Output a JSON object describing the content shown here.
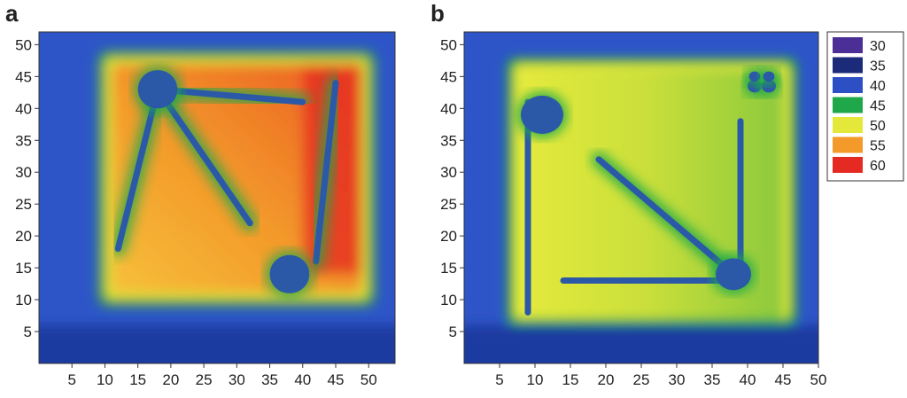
{
  "chart_data": [
    {
      "type": "heatmap",
      "panel": "a",
      "title": "",
      "xlabel": "",
      "ylabel": "",
      "xlim": [
        0,
        54
      ],
      "ylim": [
        0,
        52
      ],
      "x_ticks": [
        5,
        10,
        15,
        20,
        25,
        30,
        35,
        40,
        45,
        50
      ],
      "y_ticks": [
        5,
        10,
        15,
        20,
        25,
        30,
        35,
        40,
        45,
        50
      ],
      "frame": {
        "x0": 9,
        "y0": 9,
        "x1": 51,
        "y1": 49,
        "value": 45
      },
      "interior": {
        "x0": 11,
        "y0": 11,
        "x1": 49,
        "y1": 47,
        "value_left": 52,
        "value_right": 58
      },
      "hot_region": {
        "x0": 40,
        "y0": 14,
        "x1": 49,
        "y1": 47,
        "value": 60
      },
      "channels": [
        {
          "x1": 18,
          "y1": 43,
          "x2": 40,
          "y2": 41,
          "value": 42
        },
        {
          "x1": 18,
          "y1": 43,
          "x2": 32,
          "y2": 22,
          "value": 42
        },
        {
          "x1": 18,
          "y1": 43,
          "x2": 12,
          "y2": 18,
          "value": 42
        },
        {
          "x1": 45,
          "y1": 44,
          "x2": 42,
          "y2": 16,
          "value": 45
        }
      ],
      "blobs": [
        {
          "x": 18,
          "y": 43,
          "r": 3,
          "value": 38
        },
        {
          "x": 38,
          "y": 14,
          "r": 3,
          "value": 38
        }
      ],
      "background_value": 38
    },
    {
      "type": "heatmap",
      "panel": "b",
      "title": "",
      "xlabel": "",
      "ylabel": "",
      "xlim": [
        0,
        50
      ],
      "ylim": [
        0,
        52
      ],
      "x_ticks": [
        5,
        10,
        15,
        20,
        25,
        30,
        35,
        40,
        45,
        50
      ],
      "y_ticks": [
        5,
        10,
        15,
        20,
        25,
        30,
        35,
        40,
        45,
        50
      ],
      "frame": {
        "x0": 6,
        "y0": 6,
        "x1": 47,
        "y1": 48,
        "value": 45
      },
      "interior": {
        "x0": 7,
        "y0": 7,
        "x1": 45,
        "y1": 46,
        "value_left": 50,
        "value_right": 47
      },
      "channels": [
        {
          "x1": 9,
          "y1": 41,
          "x2": 9,
          "y2": 8,
          "value": 38
        },
        {
          "x1": 19,
          "y1": 32,
          "x2": 38,
          "y2": 14,
          "value": 38
        },
        {
          "x1": 14,
          "y1": 13,
          "x2": 38,
          "y2": 13,
          "value": 38
        },
        {
          "x1": 39,
          "y1": 38,
          "x2": 39,
          "y2": 13,
          "value": 38
        }
      ],
      "blobs": [
        {
          "x": 11,
          "y": 39,
          "r": 3,
          "value": 38
        },
        {
          "x": 38,
          "y": 14,
          "r": 2.5,
          "value": 38
        },
        {
          "x": 41,
          "y": 43.5,
          "r": 1,
          "value": 38
        },
        {
          "x": 43,
          "y": 43.5,
          "r": 1,
          "value": 38
        },
        {
          "x": 41,
          "y": 45,
          "r": 0.8,
          "value": 38
        },
        {
          "x": 43,
          "y": 45,
          "r": 0.8,
          "value": 38
        }
      ],
      "background_value": 38
    }
  ],
  "legend": [
    {
      "label": "30",
      "color": "#4b2f96"
    },
    {
      "label": "35",
      "color": "#1c2a7a"
    },
    {
      "label": "40",
      "color": "#2c4fc6"
    },
    {
      "label": "45",
      "color": "#1fa84a"
    },
    {
      "label": "50",
      "color": "#e3e83a"
    },
    {
      "label": "55",
      "color": "#f39a2a"
    },
    {
      "label": "60",
      "color": "#e42a22"
    }
  ],
  "colors": {
    "frame_stroke": "#333333",
    "background_deep": "#1f3aa0",
    "background": "#2e55c8",
    "channel": "#2c58a8"
  }
}
